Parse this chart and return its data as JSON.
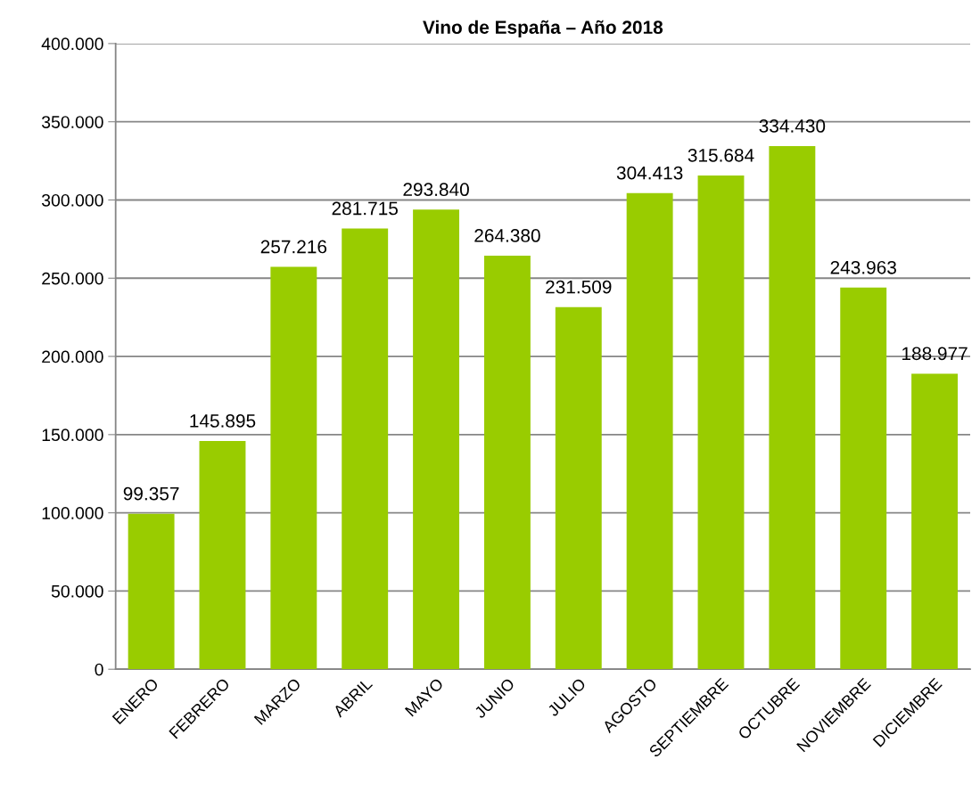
{
  "chart_data": {
    "type": "bar",
    "title": "Vino de España – Año 2018",
    "categories": [
      "ENERO",
      "FEBRERO",
      "MARZO",
      "ABRIL",
      "MAYO",
      "JUNIO",
      "JULIO",
      "AGOSTO",
      "SEPTIEMBRE",
      "OCTUBRE",
      "NOVIEMBRE",
      "DICIEMBRE"
    ],
    "values": [
      99357,
      145895,
      257216,
      281715,
      293840,
      264380,
      231509,
      304413,
      315684,
      334430,
      243963,
      188977
    ],
    "value_labels": [
      "99.357",
      "145.895",
      "257.216",
      "281.715",
      "293.840",
      "264.380",
      "231.509",
      "304.413",
      "315.684",
      "334.430",
      "243.963",
      "188.977"
    ],
    "color": "#99cc00",
    "ylim": [
      0,
      400000
    ],
    "yticks": [
      0,
      {
        "value": 50000,
        "label": "50.000"
      },
      {
        "value": 100000,
        "label": "100.000"
      },
      {
        "value": 150000,
        "label": "150.000"
      },
      {
        "value": 200000,
        "label": "200.000"
      },
      {
        "value": 250000,
        "label": "250.000"
      },
      {
        "value": 300000,
        "label": "300.000"
      },
      {
        "value": 350000,
        "label": "350.000"
      },
      {
        "value": 400000,
        "label": "400.000"
      }
    ],
    "grid": "y",
    "legend": false
  }
}
